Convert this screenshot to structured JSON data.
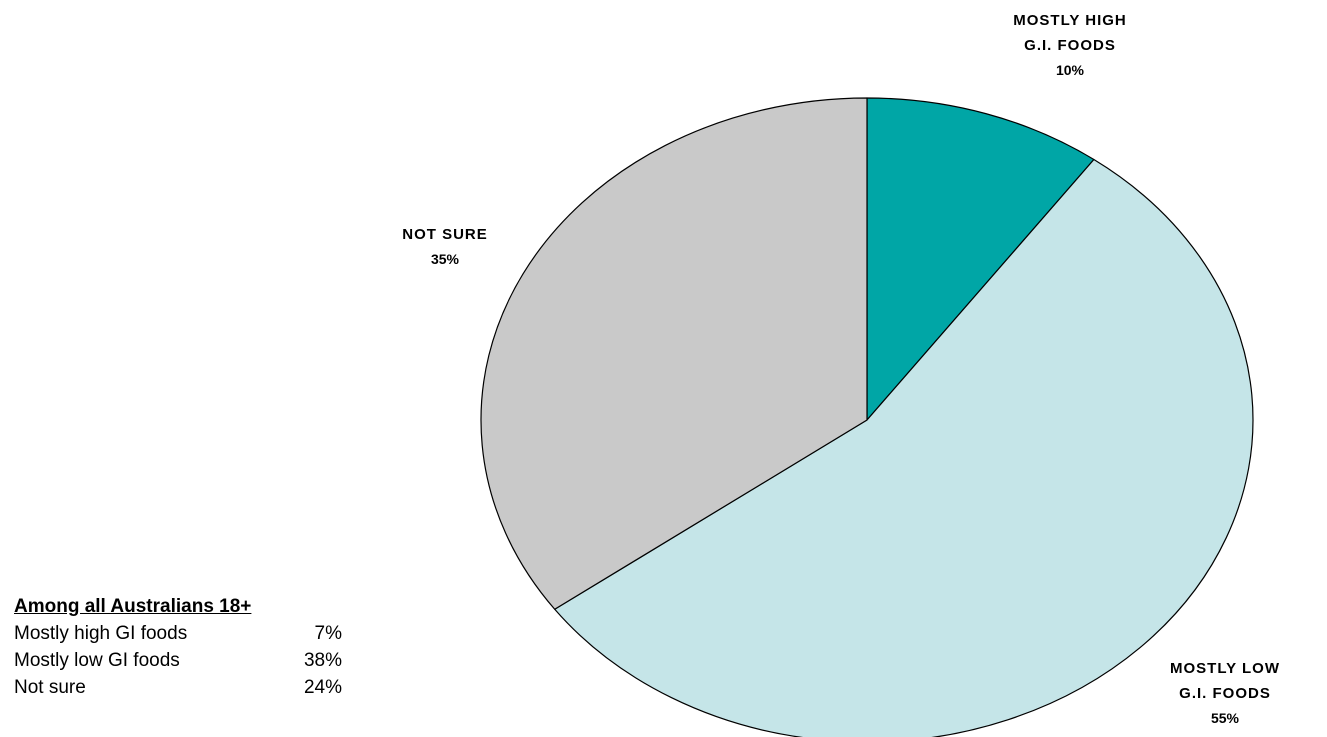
{
  "chart_data": {
    "type": "pie",
    "slices": [
      {
        "label_line1": "MOSTLY HIGH",
        "label_line2": "G.I. FOODS",
        "value": 10,
        "value_label": "10%",
        "color": "#00A6A6"
      },
      {
        "label_line1": "MOSTLY LOW",
        "label_line2": "G.I. FOODS",
        "value": 55,
        "value_label": "55%",
        "color": "#C5E5E8"
      },
      {
        "label_line1": "NOT SURE",
        "label_line2": "",
        "value": 35,
        "value_label": "35%",
        "color": "#C9C9C9"
      }
    ],
    "start_angle": "12 o'clock",
    "direction": "clockwise",
    "outline_color": "#000000"
  },
  "side_table": {
    "title": "Among all Australians 18+",
    "rows": [
      {
        "label": "Mostly high GI foods",
        "value": "7%"
      },
      {
        "label": "Mostly low GI foods",
        "value": "38%"
      },
      {
        "label": "Not sure",
        "value": "24%"
      }
    ]
  }
}
